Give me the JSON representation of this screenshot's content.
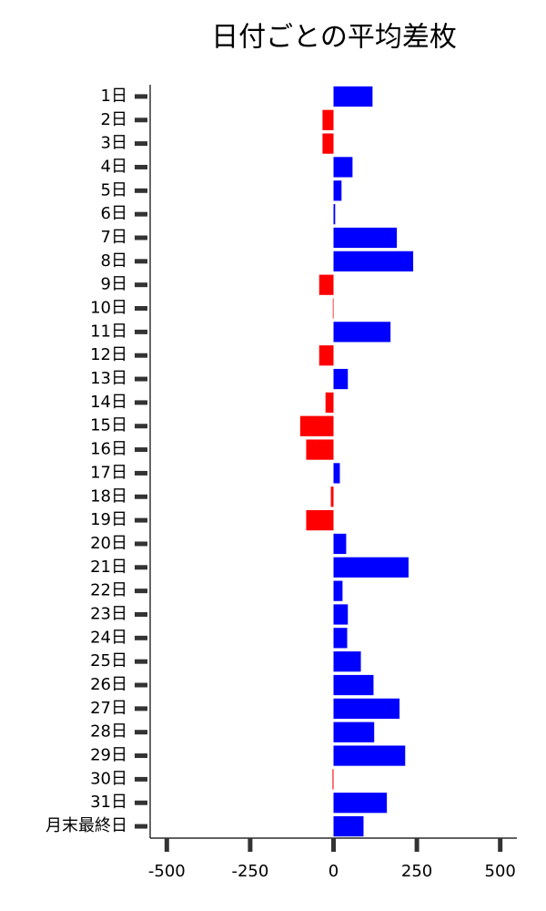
{
  "chart_data": {
    "type": "barh",
    "title": "日付ごとの平均差枚",
    "categories": [
      "1日",
      "2日",
      "3日",
      "4日",
      "5日",
      "6日",
      "7日",
      "8日",
      "9日",
      "10日",
      "11日",
      "12日",
      "13日",
      "14日",
      "15日",
      "16日",
      "17日",
      "18日",
      "19日",
      "20日",
      "21日",
      "22日",
      "23日",
      "24日",
      "25日",
      "26日",
      "27日",
      "28日",
      "29日",
      "30日",
      "31日",
      "月末最終日"
    ],
    "values": [
      117,
      -33,
      -33,
      57,
      24,
      5,
      190,
      239,
      -43,
      -2,
      171,
      -43,
      43,
      -24,
      -100,
      -82,
      19,
      -8,
      -82,
      38,
      225,
      27,
      43,
      41,
      82,
      120,
      198,
      122,
      215,
      -3,
      160,
      90
    ],
    "positive_color": "#0000ff",
    "negative_color": "#ff0000",
    "xlim": [
      -550,
      550
    ],
    "xticks": [
      -500,
      -250,
      0,
      250,
      500
    ],
    "grid": false
  }
}
